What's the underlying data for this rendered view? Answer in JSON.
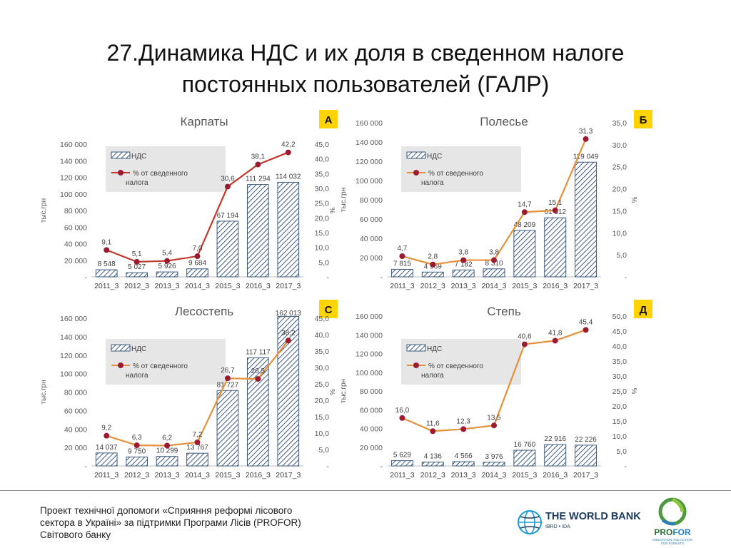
{
  "slide": {
    "title_line1": "27.Динамика НДС и их доля в сведенном налоге",
    "title_line2": "постоянных пользователей (ГАЛР)"
  },
  "footer": {
    "line1": "Проект технічної допомоги «Сприяння реформі лісового",
    "line2": "сектора в Україні» за підтримки Програми Лісів (PROFOR)",
    "line3": "Світового банку"
  },
  "logos": {
    "world_bank_name": "THE WORLD BANK",
    "world_bank_sub": "IBRD • IDA",
    "profor_name_a": "PRO",
    "profor_name_b": "FOR",
    "profor_tag": "INNOVATION AND ACTION FOR FORESTS"
  },
  "colors": {
    "bar_stroke": "#3d5a80",
    "bar_hatch": "#3d5a80",
    "line_carpathians": "#c0392b",
    "line_other": "#e69138",
    "marker": "#9b1c31",
    "badge": "#ffd400",
    "legend_bg": "#e6e6e6"
  },
  "chart_data": [
    {
      "type": "bar+line",
      "title": "Карпаты",
      "badge": "А",
      "categories": [
        "2011_3",
        "2012_3",
        "2013_3",
        "2014_3",
        "2015_3",
        "2016_3",
        "2017_3"
      ],
      "series": [
        {
          "name": "НДС",
          "type": "bar",
          "axis": "left",
          "values": [
            8548,
            5027,
            5926,
            9684,
            67194,
            111294,
            114032
          ]
        },
        {
          "name": "% от сведенного налога",
          "type": "line",
          "axis": "right",
          "values": [
            9.1,
            5.1,
            5.4,
            7.0,
            30.6,
            38.1,
            42.2
          ]
        }
      ],
      "value_labels": [
        "8 548",
        "5 027",
        "5 926",
        "9 684",
        "67 194",
        "111 294",
        "114 032"
      ],
      "pct_labels": [
        "9,1",
        "5,1",
        "5,4",
        "7,0",
        "30,6",
        "38,1",
        "42,2"
      ],
      "ylabel": "тыс.грн",
      "y2label": "%",
      "ylim": [
        0,
        160000
      ],
      "y2lim": [
        0,
        45
      ],
      "yticks": [
        "-",
        "20 000",
        "40 000",
        "60 000",
        "80 000",
        "100 000",
        "120 000",
        "140 000",
        "160 000"
      ],
      "y2ticks": [
        "-",
        "5,0",
        "10,0",
        "15,0",
        "20,0",
        "25,0",
        "30,0",
        "35,0",
        "40,0",
        "45,0"
      ],
      "legend": [
        "НДС",
        "% от сведенного",
        "налога"
      ],
      "legend_position": "top-left"
    },
    {
      "type": "bar+line",
      "title": "Полесье",
      "badge": "Б",
      "categories": [
        "2011_3",
        "2012_3",
        "2013_3",
        "2014_3",
        "2015_3",
        "2016_3",
        "2017_3"
      ],
      "series": [
        {
          "name": "НДС",
          "type": "bar",
          "axis": "left",
          "values": [
            7815,
            4969,
            7182,
            8310,
            48209,
            61312,
            119049
          ]
        },
        {
          "name": "% от сведенного налога",
          "type": "line",
          "axis": "right",
          "values": [
            4.7,
            2.8,
            3.8,
            3.8,
            14.7,
            15.1,
            31.3
          ]
        }
      ],
      "value_labels": [
        "7 815",
        "4 969",
        "7 182",
        "8 310",
        "48 209",
        "61 312",
        "119 049"
      ],
      "pct_labels": [
        "4,7",
        "2,8",
        "3,8",
        "3,8",
        "14,7",
        "15,1",
        "31,3"
      ],
      "ylabel": "тыс.грн",
      "y2label": "%",
      "ylim": [
        0,
        160000
      ],
      "y2lim": [
        0,
        35
      ],
      "yticks": [
        "-",
        "20 000",
        "40 000",
        "60 000",
        "80 000",
        "100 000",
        "120 000",
        "140 000",
        "160 000"
      ],
      "y2ticks": [
        "-",
        "5,0",
        "10,0",
        "15,0",
        "20,0",
        "25,0",
        "30,0",
        "35,0"
      ],
      "legend": [
        "НДС",
        "% от сведенного",
        "налога"
      ],
      "legend_position": "top-left"
    },
    {
      "type": "bar+line",
      "title": "Лесостепь",
      "badge": "С",
      "categories": [
        "2011_3",
        "2012_3",
        "2013_3",
        "2014_3",
        "2015_3",
        "2016_3",
        "2017_3"
      ],
      "series": [
        {
          "name": "НДС",
          "type": "bar",
          "axis": "left",
          "values": [
            14037,
            9750,
            10299,
            13767,
            81727,
            117117,
            162013
          ]
        },
        {
          "name": "% от сведенного налога",
          "type": "line",
          "axis": "right",
          "values": [
            9.2,
            6.3,
            6.2,
            7.2,
            26.7,
            26.5,
            38.2
          ]
        }
      ],
      "value_labels": [
        "14 037",
        "9 750",
        "10 299",
        "13 767",
        "81 727",
        "117 117",
        "162 013"
      ],
      "pct_labels": [
        "9,2",
        "6,3",
        "6,2",
        "7,2",
        "26,7",
        "26,5",
        "38,2"
      ],
      "ylabel": "тыс.грн",
      "y2label": "%",
      "ylim": [
        0,
        160000
      ],
      "y2lim": [
        0,
        45
      ],
      "yticks": [
        "-",
        "20 000",
        "40 000",
        "60 000",
        "80 000",
        "100 000",
        "120 000",
        "140 000",
        "160 000"
      ],
      "y2ticks": [
        "-",
        "5,0",
        "10,0",
        "15,0",
        "20,0",
        "25,0",
        "30,0",
        "35,0",
        "40,0",
        "45,0"
      ],
      "legend": [
        "НДС",
        "% от сведенного",
        "налога"
      ],
      "legend_position": "top-left"
    },
    {
      "type": "bar+line",
      "title": "Степь",
      "badge": "Д",
      "categories": [
        "2011_3",
        "2012_3",
        "2013_3",
        "2014_3",
        "2015_3",
        "2016_3",
        "2017_3"
      ],
      "series": [
        {
          "name": "НДС",
          "type": "bar",
          "axis": "left",
          "values": [
            5629,
            4136,
            4566,
            3976,
            16760,
            22916,
            22226
          ]
        },
        {
          "name": "% от сведенного налога",
          "type": "line",
          "axis": "right",
          "values": [
            16.0,
            11.6,
            12.3,
            13.5,
            40.6,
            41.8,
            45.4
          ]
        }
      ],
      "value_labels": [
        "5 629",
        "4 136",
        "4 566",
        "3 976",
        "16 760",
        "22 916",
        "22 226"
      ],
      "pct_labels": [
        "16,0",
        "11,6",
        "12,3",
        "13,5",
        "40,6",
        "41,8",
        "45,4"
      ],
      "ylabel": "тыс.грн",
      "y2label": "%",
      "ylim": [
        0,
        160000
      ],
      "y2lim": [
        0,
        50
      ],
      "yticks": [
        "-",
        "20 000",
        "40 000",
        "60 000",
        "80 000",
        "100 000",
        "120 000",
        "140 000",
        "160 000"
      ],
      "y2ticks": [
        "-",
        "5,0",
        "10,0",
        "15,0",
        "20,0",
        "25,0",
        "30,0",
        "35,0",
        "40,0",
        "45,0",
        "50,0"
      ],
      "legend": [
        "НДС",
        "% от сведенного",
        "налога"
      ],
      "legend_position": "top-left"
    }
  ]
}
